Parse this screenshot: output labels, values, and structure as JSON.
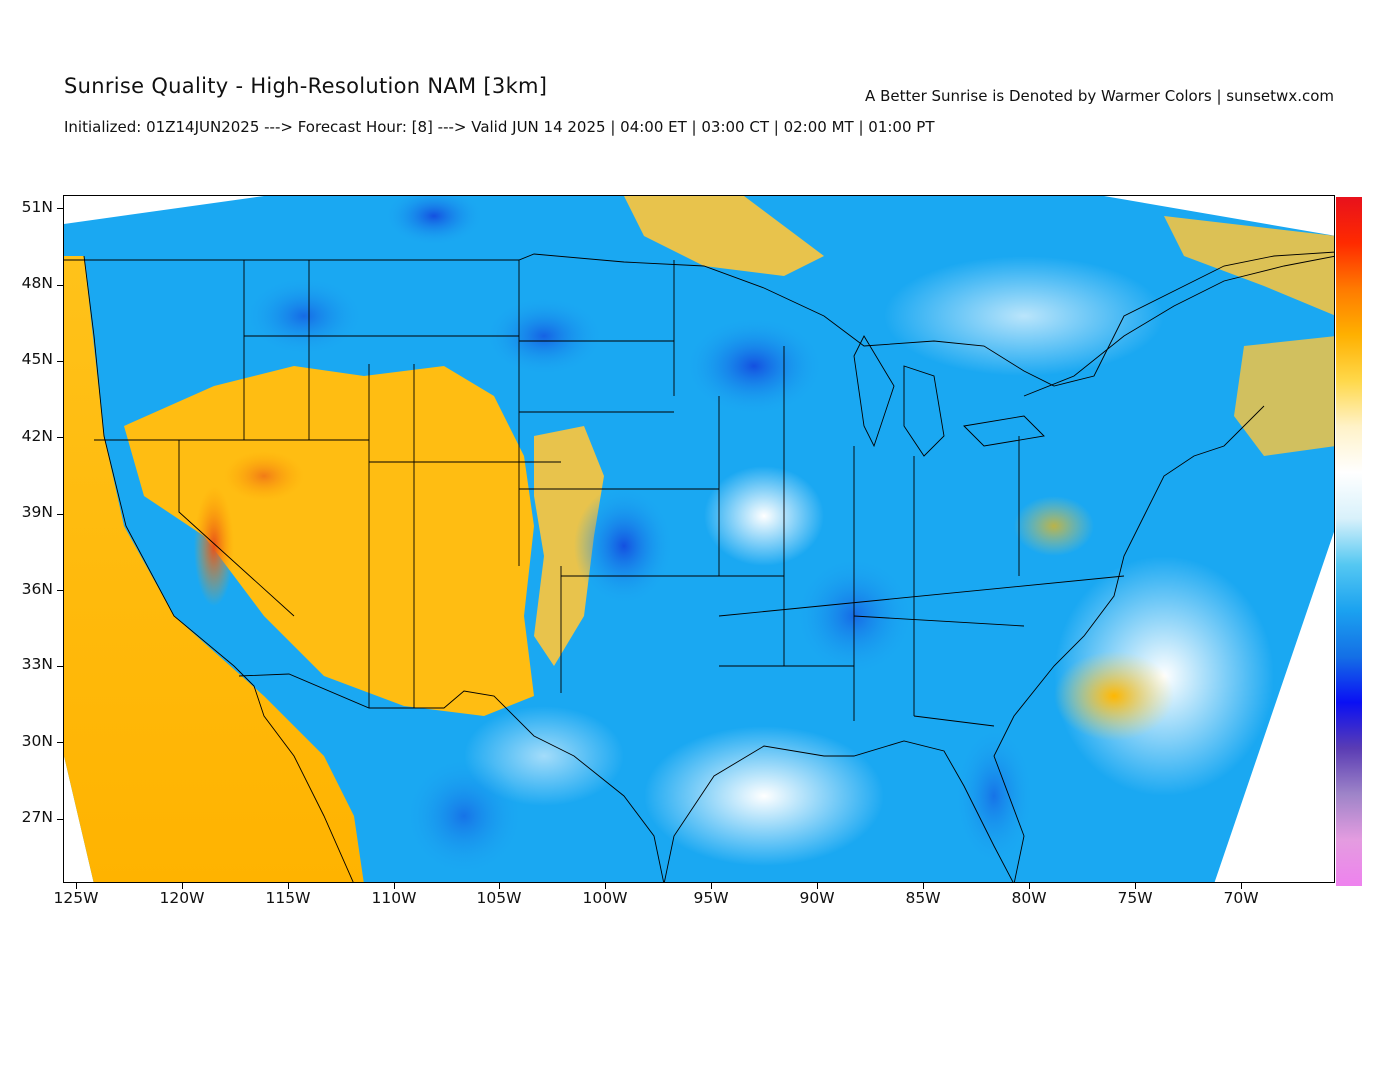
{
  "header": {
    "title": "Sunrise Quality - High-Resolution NAM [3km]",
    "legend_note": "A Better Sunrise is Denoted by Warmer Colors | sunsetwx.com",
    "init_line": "Initialized: 01Z14JUN2025 ---> Forecast Hour: [8] ---> Valid JUN 14 2025 | 04:00 ET | 03:00 CT | 02:00 MT | 01:00 PT"
  },
  "axes": {
    "lat_labels": [
      "51N",
      "48N",
      "45N",
      "42N",
      "39N",
      "36N",
      "33N",
      "30N",
      "27N"
    ],
    "lon_labels": [
      "125W",
      "120W",
      "115W",
      "110W",
      "105W",
      "100W",
      "95W",
      "90W",
      "85W",
      "80W",
      "75W",
      "70W"
    ]
  },
  "colorbar": {
    "stops": [
      "#e8111c",
      "#ff2a00",
      "#ff7a00",
      "#ffb000",
      "#ffd84a",
      "#fff2c8",
      "#ffffff",
      "#d8f1fb",
      "#55c8f2",
      "#1ba2f0",
      "#1470e6",
      "#0a10f4",
      "#5a3cb4",
      "#9e84c8",
      "#e49ce0",
      "#ee82ee"
    ]
  },
  "colors": {
    "warm": "#ffb700",
    "warm_light": "#ffd45a",
    "cool": "#1aa8f2",
    "cool_dark": "#1550e0",
    "pale": "#ffffff"
  }
}
